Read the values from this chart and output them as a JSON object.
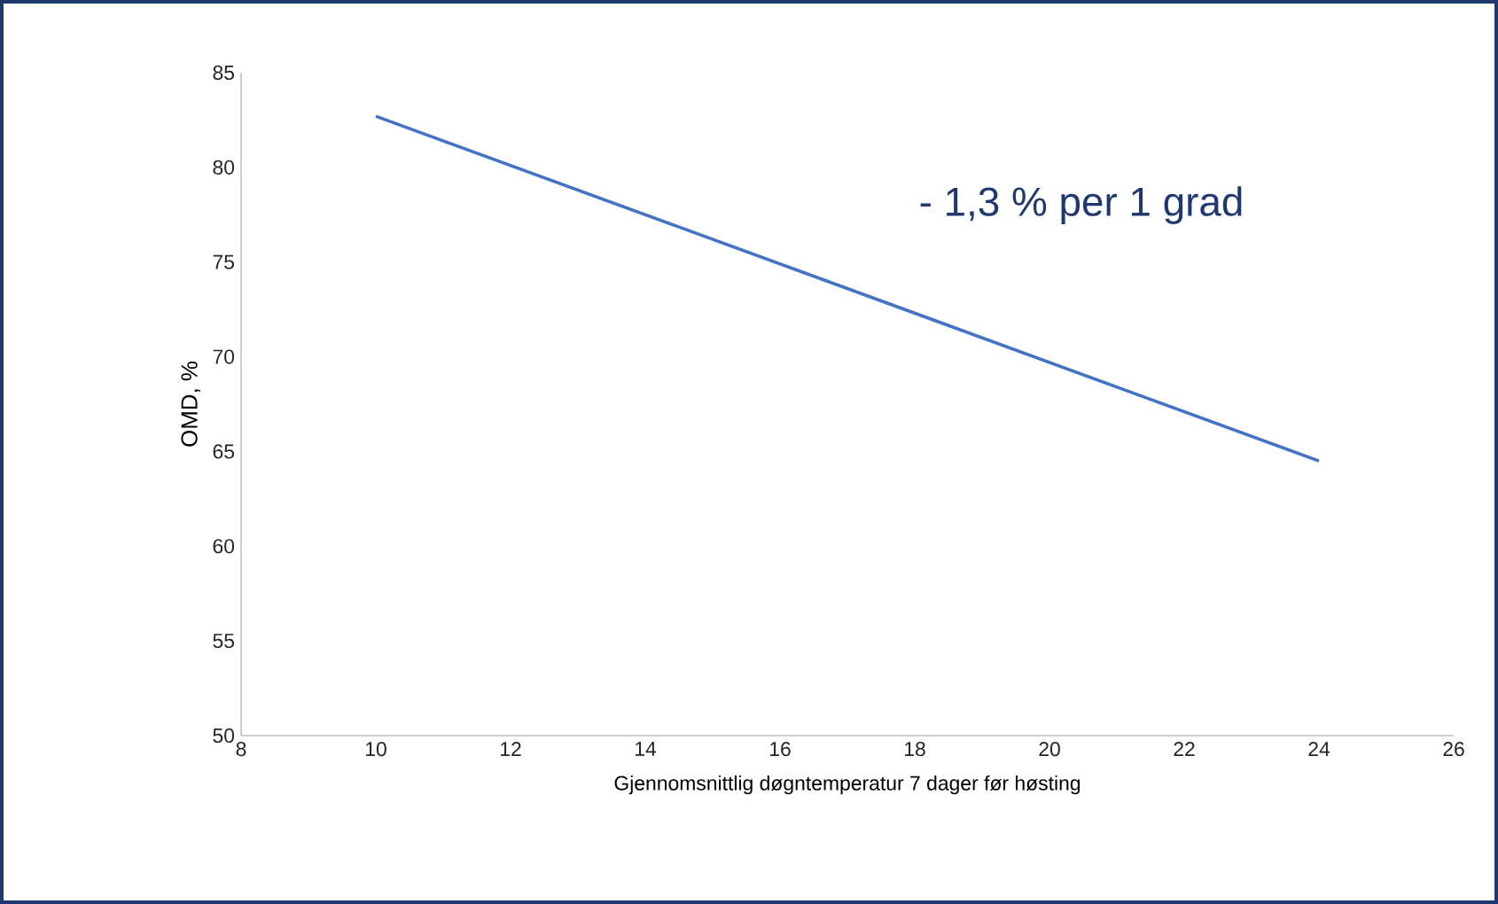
{
  "chart_data": {
    "type": "line",
    "xlabel": "Gjennomsnittlig døgntemperatur 7 dager før høsting",
    "ylabel": "OMD, %",
    "annotations": [
      "- 1,3 % per 1 grad"
    ],
    "series": [
      {
        "x": [
          10,
          24
        ],
        "values": [
          82.7,
          64.5
        ],
        "color": "#4472c4"
      }
    ],
    "xlim": [
      8,
      26
    ],
    "xticks": [
      8,
      10,
      12,
      14,
      16,
      18,
      20,
      22,
      24,
      26
    ],
    "ylim": [
      50,
      85
    ],
    "yticks": [
      50,
      55,
      60,
      65,
      70,
      75,
      80,
      85
    ],
    "grid": false,
    "marker": "none",
    "line_style": "solid"
  }
}
